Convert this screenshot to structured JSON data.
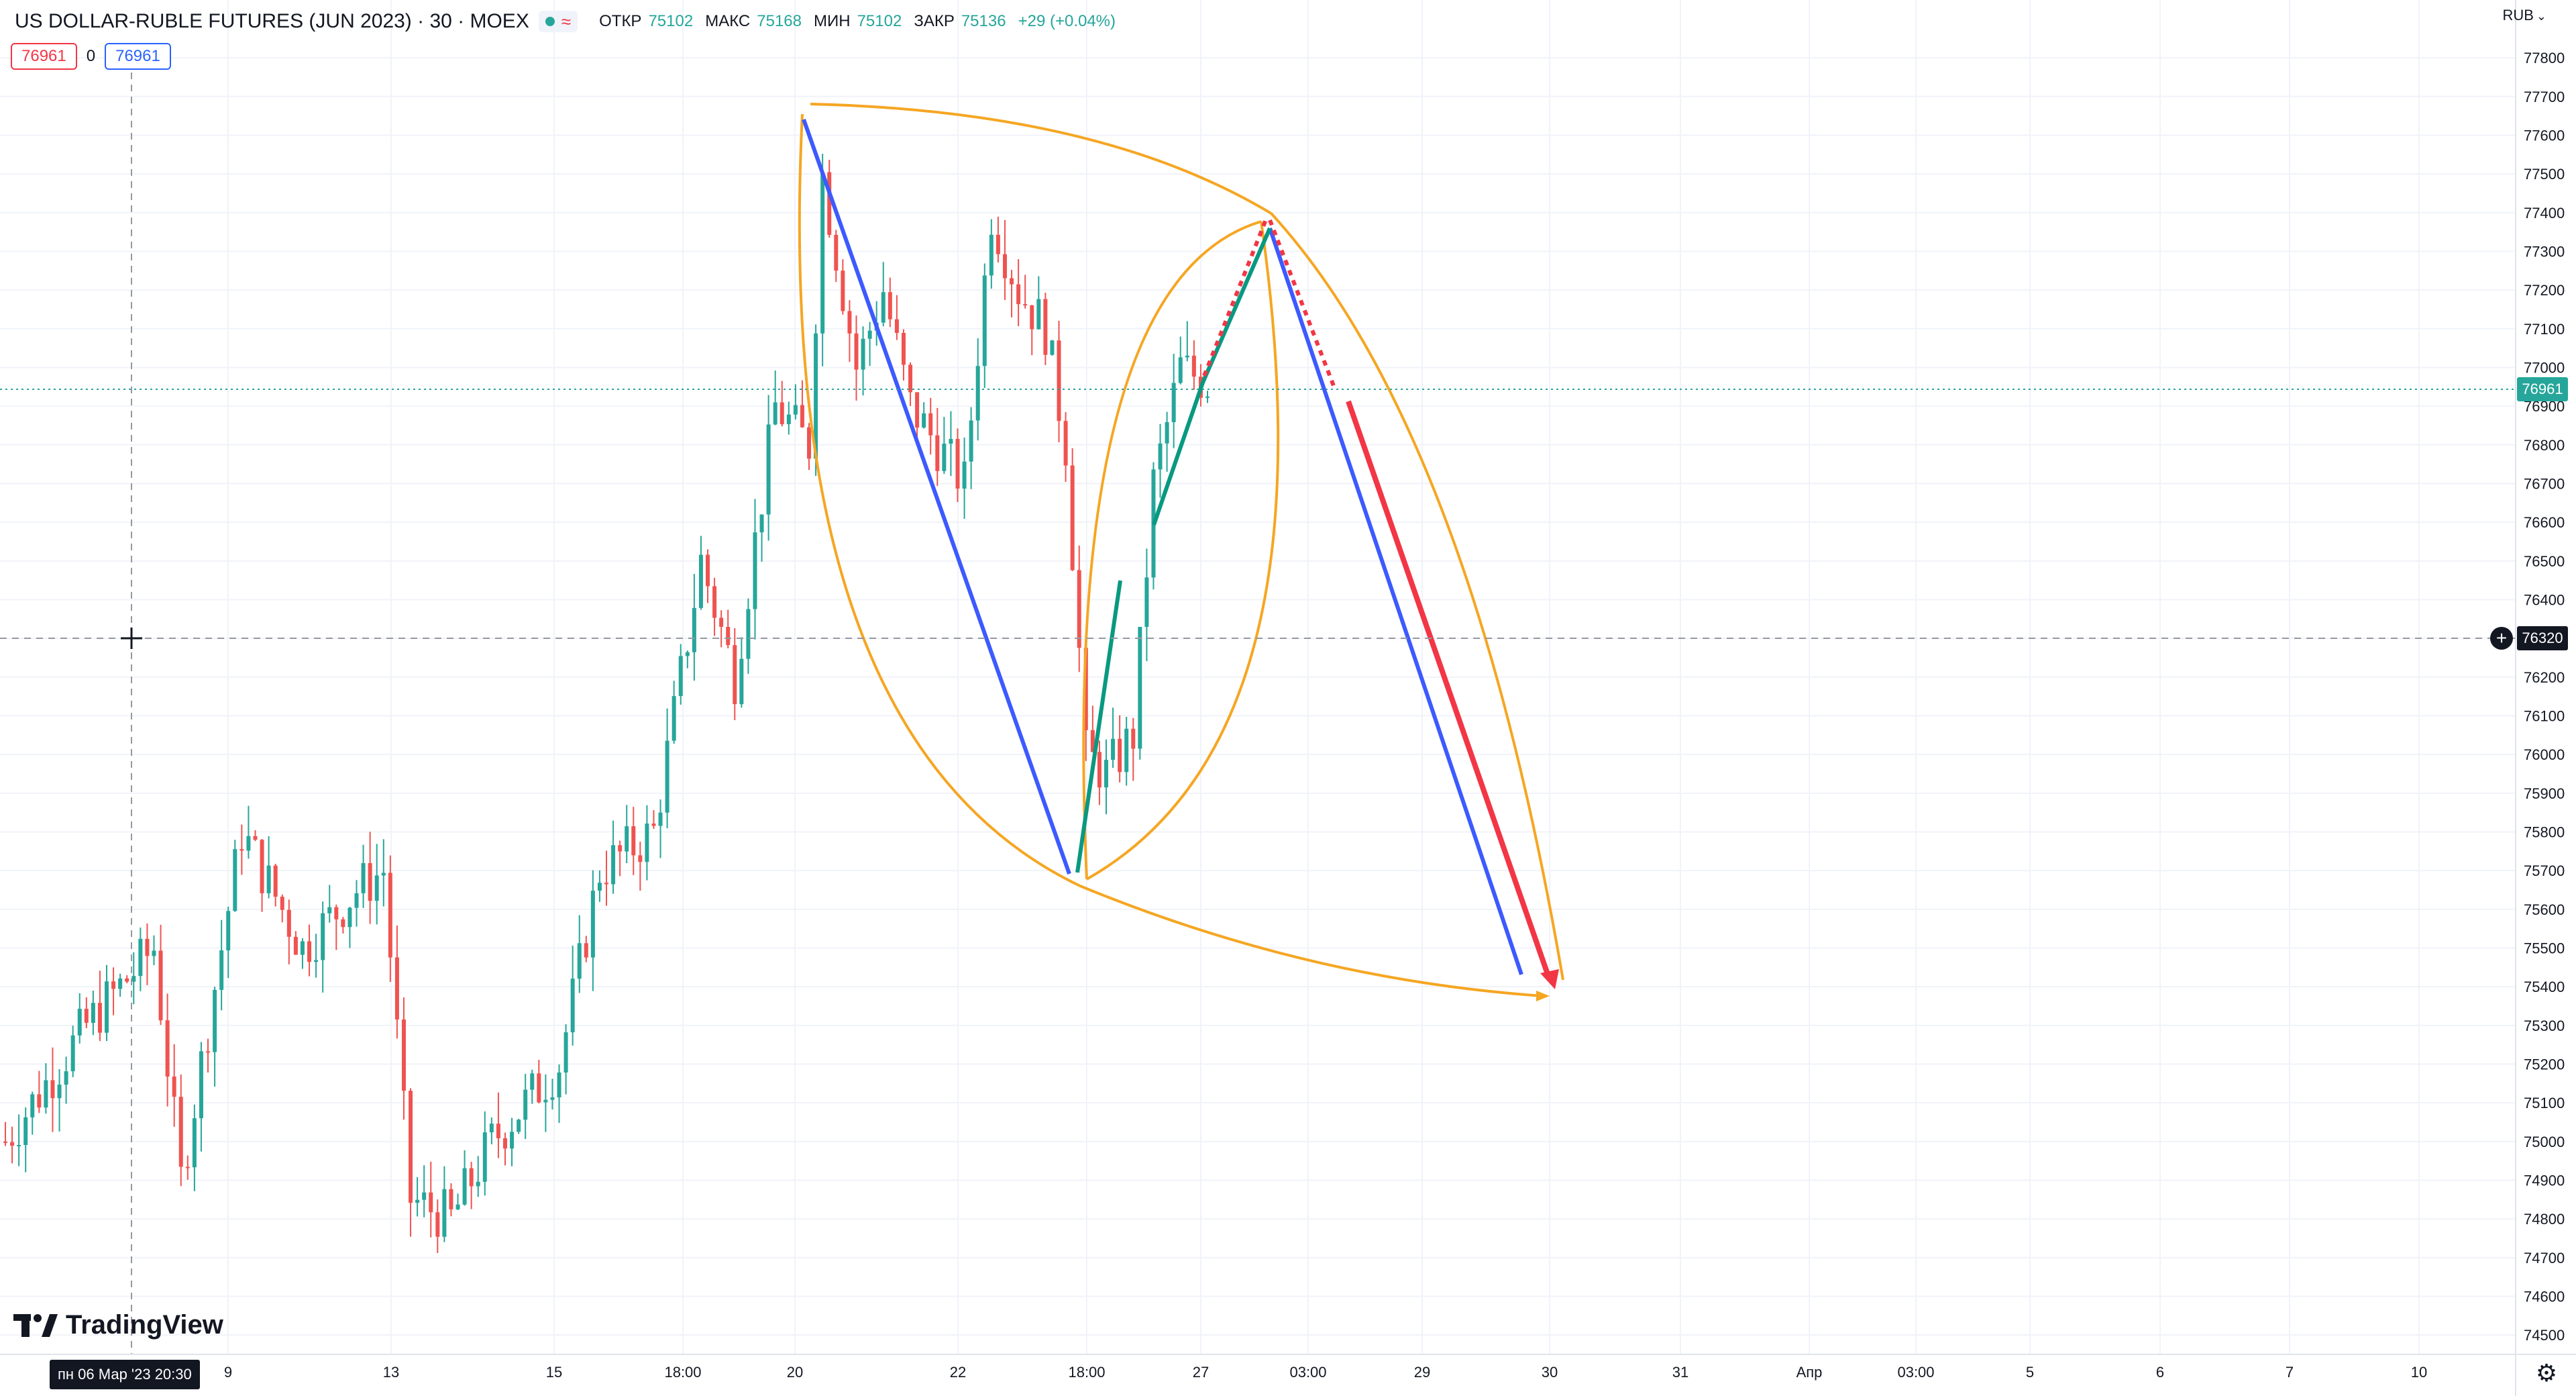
{
  "header": {
    "symbol_title": "US DOLLAR-RUBLE FUTURES (JUN 2023) · 30 · MOEX",
    "wave_glyph": "≈",
    "ohlc": [
      {
        "label": "ОТКР",
        "value": "75102"
      },
      {
        "label": "МАКС",
        "value": "75168"
      },
      {
        "label": "МИН",
        "value": "75102"
      },
      {
        "label": "ЗАКР",
        "value": "75136"
      }
    ],
    "change": "+29 (+0.04%)",
    "sell_price": "76961",
    "spread": "0",
    "buy_price": "76961"
  },
  "price_axis": {
    "currency": "RUB",
    "current_price_label": "76961",
    "crosshair_price_label": "76320",
    "ticks": [
      "77800",
      "77700",
      "77600",
      "77500",
      "77400",
      "77300",
      "77200",
      "77100",
      "77000",
      "76900",
      "76800",
      "76700",
      "76600",
      "76500",
      "76400",
      "76300",
      "76200",
      "76100",
      "76000",
      "75900",
      "75800",
      "75700",
      "75600",
      "75500",
      "75400",
      "75300",
      "75200",
      "75100",
      "75000",
      "74900",
      "74800",
      "74700",
      "74600",
      "74500"
    ]
  },
  "time_axis": {
    "crosshair_time_label": "пн 06 Мар '23  20:30",
    "labels": [
      "9",
      "13",
      "15",
      "18:00",
      "20",
      "22",
      "18:00",
      "27",
      "03:00",
      "29",
      "30",
      "31",
      "Апр",
      "03:00",
      "5",
      "6",
      "7",
      "10"
    ]
  },
  "branding": {
    "name": "TradingView"
  },
  "colors": {
    "up": "#26a69a",
    "down": "#ef5350",
    "fan_curves": "#f5a623",
    "blue_line": "#3d5afe",
    "green_path": "#089981",
    "red_projection": "#f23645",
    "accent_blue": "#2962ff"
  },
  "chart_data": {
    "type": "candlestick",
    "symbol": "US DOLLAR-RUBLE FUTURES (JUN 2023)",
    "interval": "30",
    "currency": "RUB",
    "ylim": [
      74450,
      77880
    ],
    "current_price": 76961,
    "crosshair_price": 76320,
    "anchors": [
      {
        "bar": 0,
        "price": 75000
      },
      {
        "bar": 12,
        "price": 75300
      },
      {
        "bar": 22,
        "price": 75500
      },
      {
        "bar": 26,
        "price": 74900
      },
      {
        "bar": 35,
        "price": 75800
      },
      {
        "bar": 44,
        "price": 75500
      },
      {
        "bar": 52,
        "price": 75650
      },
      {
        "bar": 56,
        "price": 75700
      },
      {
        "bar": 60,
        "price": 74850
      },
      {
        "bar": 66,
        "price": 74800
      },
      {
        "bar": 72,
        "price": 75000
      },
      {
        "bar": 82,
        "price": 75200
      },
      {
        "bar": 88,
        "price": 75700
      },
      {
        "bar": 96,
        "price": 75800
      },
      {
        "bar": 103,
        "price": 76500
      },
      {
        "bar": 108,
        "price": 76200
      },
      {
        "bar": 114,
        "price": 76900
      },
      {
        "bar": 119,
        "price": 76800
      },
      {
        "bar": 121,
        "price": 77500
      },
      {
        "bar": 126,
        "price": 77000
      },
      {
        "bar": 130,
        "price": 77200
      },
      {
        "bar": 134,
        "price": 76900
      },
      {
        "bar": 138,
        "price": 76800
      },
      {
        "bar": 142,
        "price": 76700
      },
      {
        "bar": 146,
        "price": 77400
      },
      {
        "bar": 150,
        "price": 77200
      },
      {
        "bar": 154,
        "price": 77100
      },
      {
        "bar": 157,
        "price": 76800
      },
      {
        "bar": 160,
        "price": 76000
      },
      {
        "bar": 163,
        "price": 75950
      },
      {
        "bar": 167,
        "price": 76050
      },
      {
        "bar": 170,
        "price": 76700
      },
      {
        "bar": 174,
        "price": 77000
      },
      {
        "bar": 178,
        "price": 76961
      }
    ],
    "candle_count": 179
  }
}
